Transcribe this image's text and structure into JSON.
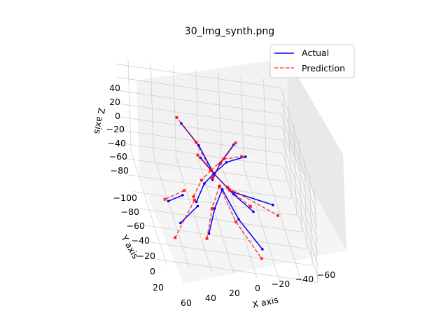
{
  "chart_data": {
    "type": "line",
    "projection": "3d",
    "title": "30_Img_synth.png",
    "xlabel": "X axis",
    "ylabel": "Y axis",
    "zlabel": "Z axis",
    "x_ticks": [
      "60",
      "40",
      "20",
      "0",
      "−20",
      "−40",
      "−60"
    ],
    "y_ticks": [
      "−100",
      "−80",
      "−60",
      "−40",
      "−20",
      "0",
      "20"
    ],
    "z_ticks": [
      "40",
      "20",
      "0",
      "−20",
      "−40",
      "−60",
      "−80"
    ],
    "grid": true,
    "legend": {
      "placement": "top-right"
    },
    "series": [
      {
        "name": "Actual",
        "color": "#0000ff",
        "linestyle": "solid",
        "segments": [
          [
            [
              3,
              -40,
              -30
            ],
            [
              -5,
              -45,
              -10
            ],
            [
              -20,
              -55,
              10
            ]
          ],
          [
            [
              12,
              -45,
              -5
            ],
            [
              0,
              -48,
              -30
            ]
          ],
          [
            [
              0,
              -48,
              -30
            ],
            [
              10,
              -60,
              -5
            ],
            [
              25,
              -60,
              25
            ]
          ],
          [
            [
              0,
              -48,
              -30
            ],
            [
              -10,
              -40,
              0
            ],
            [
              -25,
              -30,
              25
            ]
          ],
          [
            [
              0,
              -48,
              -30
            ],
            [
              10,
              -42,
              -40
            ],
            [
              20,
              -30,
              -55
            ]
          ],
          [
            [
              0,
              -48,
              -30
            ],
            [
              -15,
              -38,
              -45
            ],
            [
              -30,
              -28,
              -55
            ]
          ],
          [
            [
              -5,
              -38,
              -40
            ],
            [
              5,
              -25,
              -55
            ],
            [
              15,
              -5,
              -70
            ]
          ],
          [
            [
              -5,
              -38,
              -40
            ],
            [
              -15,
              -20,
              -60
            ],
            [
              -30,
              5,
              -70
            ]
          ],
          [
            [
              30,
              -40,
              -60
            ],
            [
              45,
              -30,
              -60
            ]
          ],
          [
            [
              -15,
              -45,
              -50
            ],
            [
              -50,
              -40,
              -55
            ]
          ],
          [
            [
              20,
              -25,
              -55
            ],
            [
              40,
              -5,
              -60
            ]
          ]
        ]
      },
      {
        "name": "Prediction",
        "color": "#ff0000",
        "linestyle": "dashed",
        "segments": [
          [
            [
              3,
              -42,
              -30
            ],
            [
              -6,
              -46,
              -10
            ],
            [
              -22,
              -56,
              12
            ]
          ],
          [
            [
              14,
              -47,
              -4
            ],
            [
              2,
              -50,
              -28
            ]
          ],
          [
            [
              2,
              -50,
              -28
            ],
            [
              12,
              -62,
              -3
            ],
            [
              28,
              -64,
              28
            ]
          ],
          [
            [
              2,
              -50,
              -28
            ],
            [
              -8,
              -42,
              2
            ],
            [
              -22,
              -32,
              22
            ]
          ],
          [
            [
              2,
              -50,
              -28
            ],
            [
              12,
              -44,
              -38
            ],
            [
              22,
              -32,
              -50
            ]
          ],
          [
            [
              2,
              -50,
              -28
            ],
            [
              -12,
              -40,
              -42
            ],
            [
              -28,
              -30,
              -50
            ]
          ],
          [
            [
              -3,
              -40,
              -38
            ],
            [
              8,
              -22,
              -52
            ],
            [
              18,
              0,
              -72
            ]
          ],
          [
            [
              -3,
              -40,
              -38
            ],
            [
              -12,
              -18,
              -62
            ],
            [
              -28,
              10,
              -78
            ]
          ],
          [
            [
              28,
              -42,
              -55
            ],
            [
              48,
              -30,
              -58
            ]
          ],
          [
            [
              -12,
              -48,
              -48
            ],
            [
              -55,
              -44,
              -75
            ]
          ],
          [
            [
              22,
              -28,
              -50
            ],
            [
              45,
              -6,
              -85
            ]
          ]
        ]
      }
    ]
  }
}
